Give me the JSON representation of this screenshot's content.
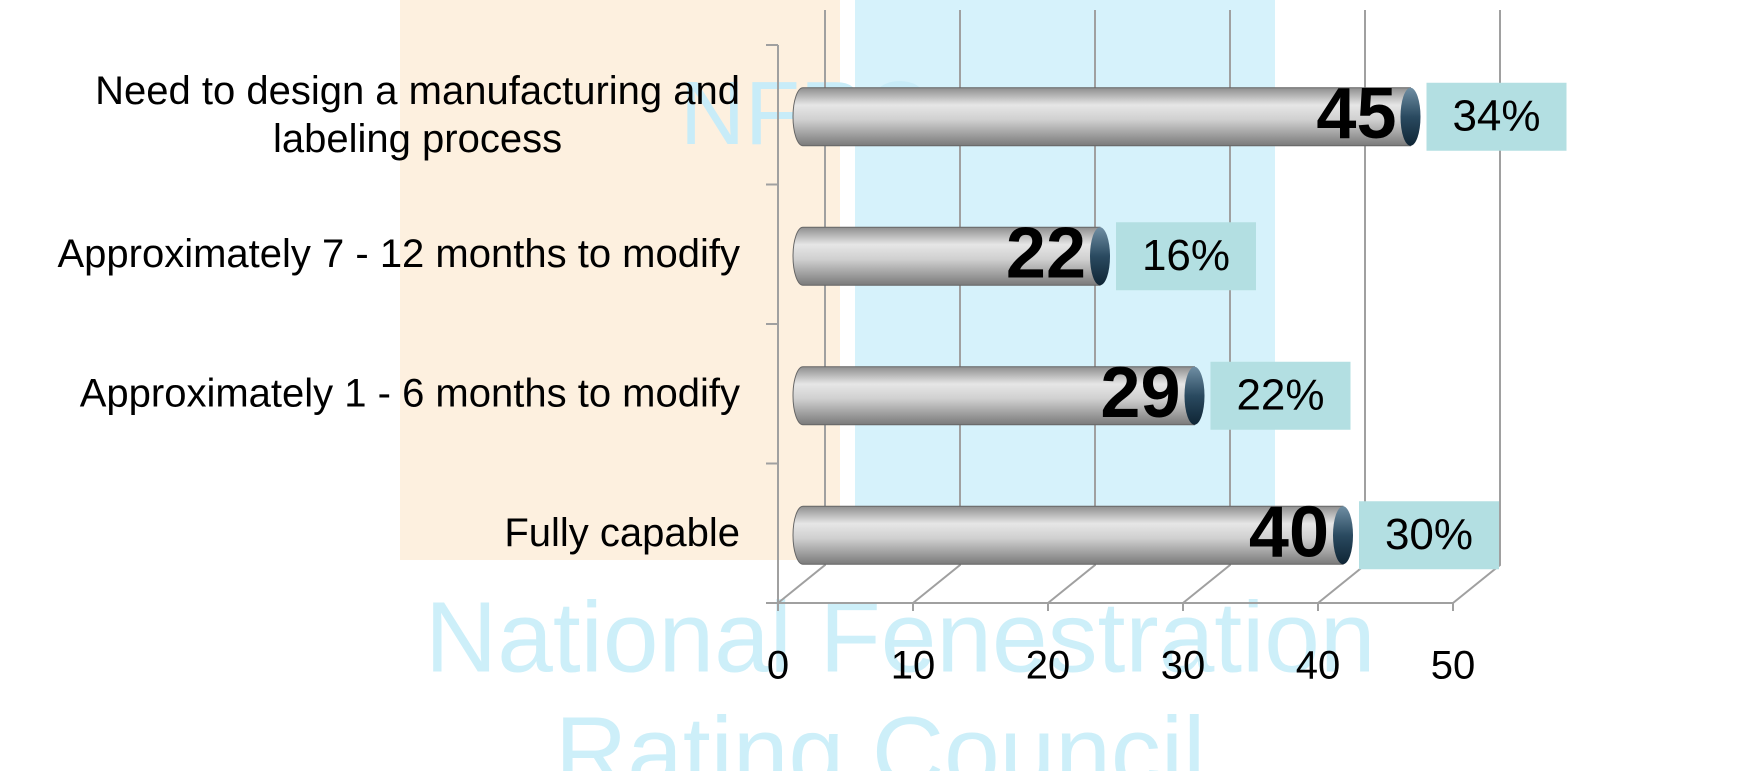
{
  "chart_data": {
    "type": "bar3d_horizontal",
    "categories": [
      "Need to design a manufacturing and labeling process",
      "Approximately 7 - 12 months to modify",
      "Approximately 1 - 6 months to modify",
      "Fully capable"
    ],
    "values": [
      45,
      22,
      29,
      40
    ],
    "percentage_labels": [
      "34%",
      "16%",
      "22%",
      "30%"
    ],
    "color": "#c4c4c4",
    "xlim": [
      0,
      50
    ],
    "xticks": [
      0,
      10,
      20,
      30,
      40,
      50
    ],
    "grid": true,
    "watermark": [
      "NFRC",
      "National Fenestration",
      "Rating Council"
    ]
  }
}
